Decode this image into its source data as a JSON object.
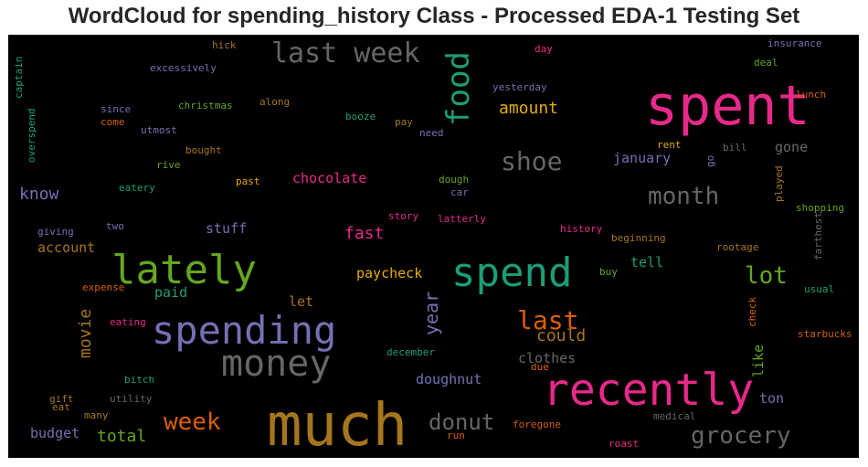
{
  "chart_data": {
    "type": "wordcloud",
    "title": "WordCloud for spending_history Class - Processed EDA-1 Testing Set",
    "background_color": "#000000",
    "palette": [
      "#1b9e77",
      "#d95f02",
      "#7570b3",
      "#e7298a",
      "#66a61e",
      "#e6ab02",
      "#a6761d",
      "#666666"
    ],
    "words": [
      {
        "text": "much",
        "weight": 1.0,
        "color": "#a6761d"
      },
      {
        "text": "spent",
        "weight": 0.95,
        "color": "#e7298a"
      },
      {
        "text": "recently",
        "weight": 0.85,
        "color": "#e7298a"
      },
      {
        "text": "spend",
        "weight": 0.78,
        "color": "#1b9e77"
      },
      {
        "text": "lately",
        "weight": 0.78,
        "color": "#66a61e"
      },
      {
        "text": "spending",
        "weight": 0.75,
        "color": "#7570b3"
      },
      {
        "text": "money",
        "weight": 0.68,
        "color": "#666666"
      },
      {
        "text": "last week",
        "weight": 0.6,
        "color": "#666666"
      },
      {
        "text": "food",
        "weight": 0.6,
        "color": "#1b9e77",
        "rotated": true
      },
      {
        "text": "shoe",
        "weight": 0.5,
        "color": "#666666"
      },
      {
        "text": "last",
        "weight": 0.5,
        "color": "#d95f02"
      },
      {
        "text": "lot",
        "weight": 0.5,
        "color": "#66a61e"
      },
      {
        "text": "month",
        "weight": 0.45,
        "color": "#666666"
      },
      {
        "text": "grocery",
        "weight": 0.45,
        "color": "#666666"
      },
      {
        "text": "week",
        "weight": 0.42,
        "color": "#d95f02"
      },
      {
        "text": "donut",
        "weight": 0.42,
        "color": "#666666"
      },
      {
        "text": "year",
        "weight": 0.35,
        "color": "#7570b3",
        "rotated": true
      },
      {
        "text": "movie",
        "weight": 0.32,
        "color": "#a6761d",
        "rotated": true
      },
      {
        "text": "amount",
        "weight": 0.3,
        "color": "#e6ab02"
      },
      {
        "text": "fast",
        "weight": 0.3,
        "color": "#e7298a"
      },
      {
        "text": "could",
        "weight": 0.3,
        "color": "#a6761d"
      },
      {
        "text": "total",
        "weight": 0.3,
        "color": "#66a61e"
      },
      {
        "text": "know",
        "weight": 0.28,
        "color": "#7570b3"
      },
      {
        "text": "chocolate",
        "weight": 0.26,
        "color": "#e7298a"
      },
      {
        "text": "paycheck",
        "weight": 0.26,
        "color": "#e6ab02"
      },
      {
        "text": "clothes",
        "weight": 0.25,
        "color": "#666666"
      },
      {
        "text": "doughnut",
        "weight": 0.25,
        "color": "#7570b3"
      },
      {
        "text": "like",
        "weight": 0.25,
        "color": "#66a61e",
        "rotated": true
      },
      {
        "text": "stuff",
        "weight": 0.25,
        "color": "#7570b3"
      },
      {
        "text": "paid",
        "weight": 0.25,
        "color": "#1b9e77"
      },
      {
        "text": "january",
        "weight": 0.24,
        "color": "#7570b3"
      },
      {
        "text": "gone",
        "weight": 0.24,
        "color": "#666666"
      },
      {
        "text": "tell",
        "weight": 0.24,
        "color": "#1b9e77"
      },
      {
        "text": "budget",
        "weight": 0.23,
        "color": "#7570b3"
      },
      {
        "text": "account",
        "weight": 0.23,
        "color": "#a6761d"
      },
      {
        "text": "let",
        "weight": 0.23,
        "color": "#a6761d"
      },
      {
        "text": "ton",
        "weight": 0.23,
        "color": "#7570b3"
      },
      {
        "text": "excessively",
        "weight": 0.15,
        "color": "#7570b3"
      },
      {
        "text": "hick",
        "weight": 0.15,
        "color": "#a6761d"
      },
      {
        "text": "christmas",
        "weight": 0.15,
        "color": "#66a61e"
      },
      {
        "text": "along",
        "weight": 0.15,
        "color": "#a6761d"
      },
      {
        "text": "since",
        "weight": 0.15,
        "color": "#7570b3"
      },
      {
        "text": "come",
        "weight": 0.15,
        "color": "#d95f02"
      },
      {
        "text": "utmost",
        "weight": 0.15,
        "color": "#7570b3"
      },
      {
        "text": "booze",
        "weight": 0.15,
        "color": "#1b9e77"
      },
      {
        "text": "pay",
        "weight": 0.15,
        "color": "#a6761d"
      },
      {
        "text": "need",
        "weight": 0.15,
        "color": "#7570b3"
      },
      {
        "text": "yesterday",
        "weight": 0.15,
        "color": "#7570b3"
      },
      {
        "text": "day",
        "weight": 0.15,
        "color": "#e7298a"
      },
      {
        "text": "insurance",
        "weight": 0.15,
        "color": "#7570b3"
      },
      {
        "text": "deal",
        "weight": 0.15,
        "color": "#66a61e"
      },
      {
        "text": "lunch",
        "weight": 0.15,
        "color": "#d95f02"
      },
      {
        "text": "captain",
        "weight": 0.15,
        "color": "#1b9e77",
        "rotated": true
      },
      {
        "text": "overspend",
        "weight": 0.15,
        "color": "#1b9e77",
        "rotated": true
      },
      {
        "text": "bought",
        "weight": 0.15,
        "color": "#a6761d"
      },
      {
        "text": "rive",
        "weight": 0.15,
        "color": "#66a61e"
      },
      {
        "text": "past",
        "weight": 0.15,
        "color": "#e6ab02"
      },
      {
        "text": "dough",
        "weight": 0.15,
        "color": "#66a61e"
      },
      {
        "text": "car",
        "weight": 0.15,
        "color": "#7570b3"
      },
      {
        "text": "eatery",
        "weight": 0.15,
        "color": "#1b9e77"
      },
      {
        "text": "rent",
        "weight": 0.15,
        "color": "#e6ab02"
      },
      {
        "text": "bill",
        "weight": 0.15,
        "color": "#666666"
      },
      {
        "text": "go",
        "weight": 0.15,
        "color": "#7570b3",
        "rotated": true
      },
      {
        "text": "played",
        "weight": 0.15,
        "color": "#a6761d",
        "rotated": true
      },
      {
        "text": "shopping",
        "weight": 0.15,
        "color": "#66a61e"
      },
      {
        "text": "giving",
        "weight": 0.15,
        "color": "#7570b3"
      },
      {
        "text": "two",
        "weight": 0.15,
        "color": "#7570b3"
      },
      {
        "text": "story",
        "weight": 0.15,
        "color": "#e7298a"
      },
      {
        "text": "latterly",
        "weight": 0.15,
        "color": "#e7298a"
      },
      {
        "text": "history",
        "weight": 0.15,
        "color": "#e7298a"
      },
      {
        "text": "beginning",
        "weight": 0.15,
        "color": "#a6761d"
      },
      {
        "text": "farthest",
        "weight": 0.15,
        "color": "#666666",
        "rotated": true
      },
      {
        "text": "rootage",
        "weight": 0.15,
        "color": "#a6761d"
      },
      {
        "text": "buy",
        "weight": 0.15,
        "color": "#66a61e"
      },
      {
        "text": "usual",
        "weight": 0.15,
        "color": "#1b9e77"
      },
      {
        "text": "expense",
        "weight": 0.15,
        "color": "#d95f02"
      },
      {
        "text": "eating",
        "weight": 0.15,
        "color": "#e7298a"
      },
      {
        "text": "check",
        "weight": 0.15,
        "color": "#d95f02",
        "rotated": true
      },
      {
        "text": "starbucks",
        "weight": 0.15,
        "color": "#d95f02"
      },
      {
        "text": "eat",
        "weight": 0.15,
        "color": "#a6761d"
      },
      {
        "text": "december",
        "weight": 0.15,
        "color": "#1b9e77"
      },
      {
        "text": "due",
        "weight": 0.15,
        "color": "#d95f02"
      },
      {
        "text": "bitch",
        "weight": 0.15,
        "color": "#1b9e77"
      },
      {
        "text": "gift",
        "weight": 0.15,
        "color": "#a6761d"
      },
      {
        "text": "utility",
        "weight": 0.15,
        "color": "#666666"
      },
      {
        "text": "many",
        "weight": 0.15,
        "color": "#a6761d"
      },
      {
        "text": "run",
        "weight": 0.15,
        "color": "#d95f02"
      },
      {
        "text": "foregone",
        "weight": 0.15,
        "color": "#d95f02"
      },
      {
        "text": "medical",
        "weight": 0.15,
        "color": "#666666"
      },
      {
        "text": "roast",
        "weight": 0.15,
        "color": "#e7298a"
      }
    ]
  }
}
